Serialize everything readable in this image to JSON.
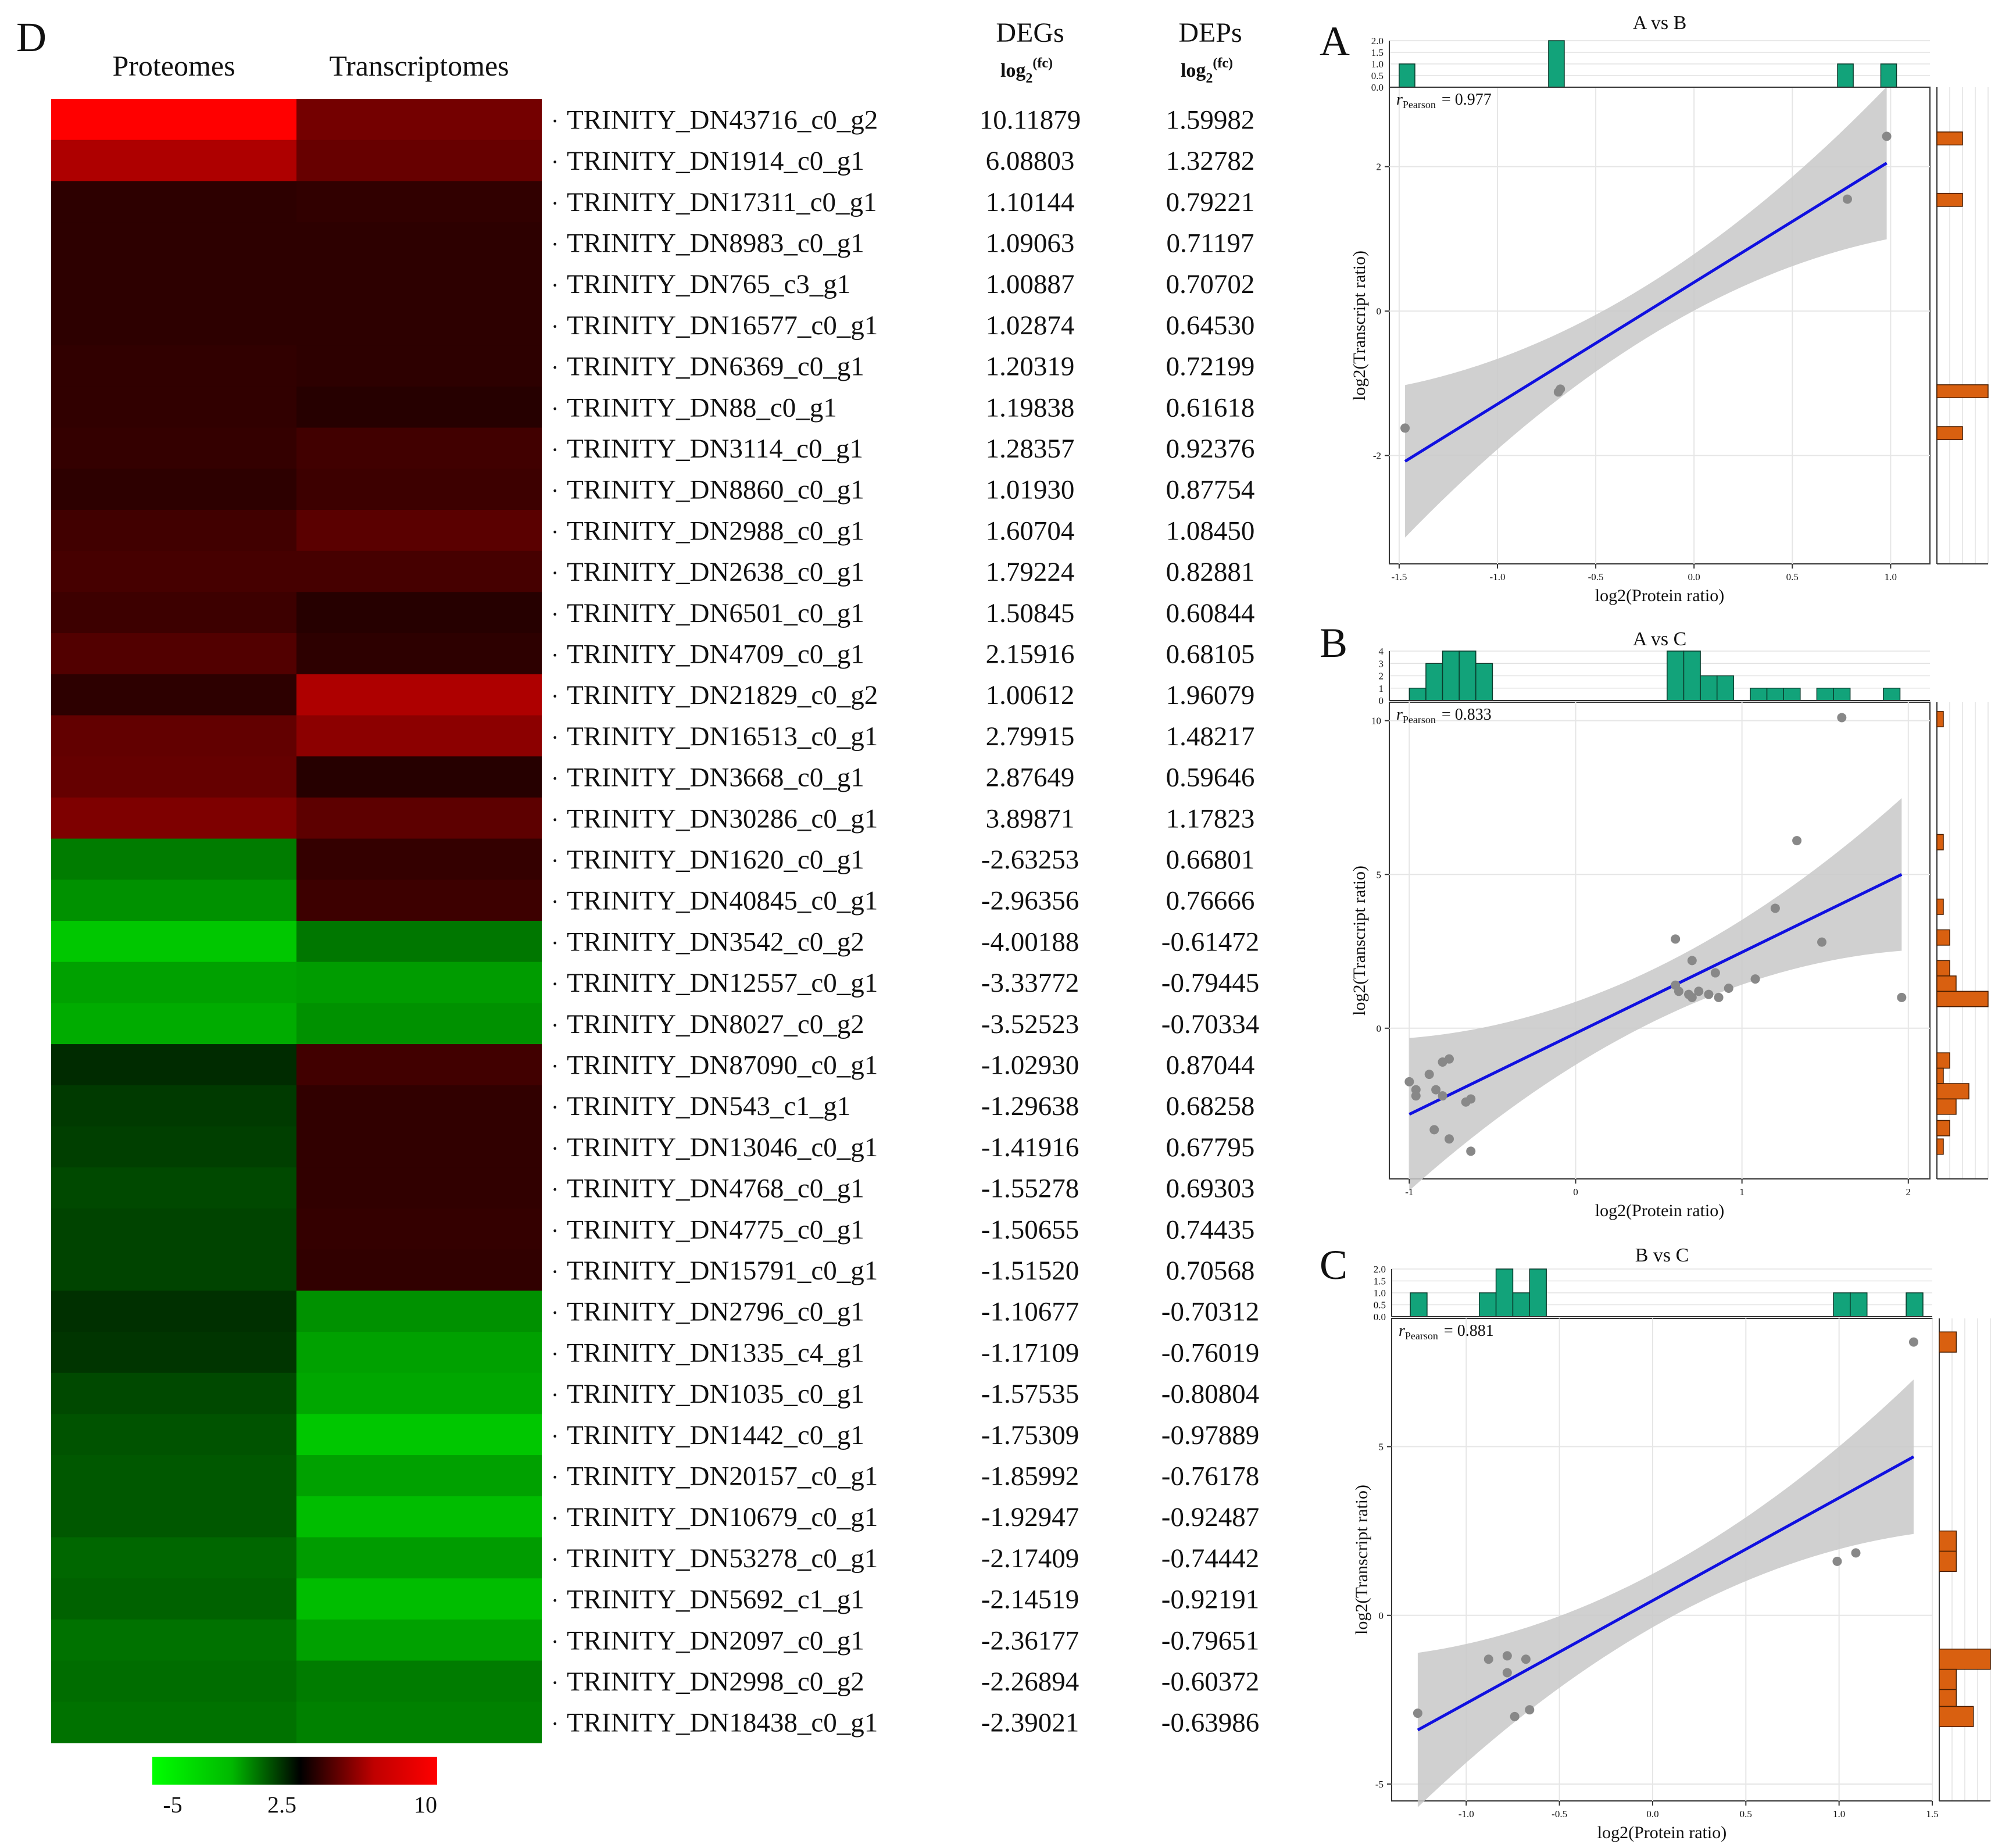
{
  "heatmap": {
    "panel_label": "D",
    "col_headers": [
      "Proteomes",
      "Transcriptomes"
    ],
    "value_headers": {
      "degs": "DEGs",
      "deps": "DEPs",
      "log_base": "log",
      "log_sub": "2",
      "log_sup": "(fc)"
    },
    "rows": [
      {
        "gene": "TRINITY_DN43716_c0_g2",
        "degs": "10.11879",
        "deps": "1.59982"
      },
      {
        "gene": "TRINITY_DN1914_c0_g1",
        "degs": "6.08803",
        "deps": "1.32782"
      },
      {
        "gene": "TRINITY_DN17311_c0_g1",
        "degs": "1.10144",
        "deps": "0.79221"
      },
      {
        "gene": "TRINITY_DN8983_c0_g1",
        "degs": "1.09063",
        "deps": "0.71197"
      },
      {
        "gene": "TRINITY_DN765_c3_g1",
        "degs": "1.00887",
        "deps": "0.70702"
      },
      {
        "gene": "TRINITY_DN16577_c0_g1",
        "degs": "1.02874",
        "deps": "0.64530"
      },
      {
        "gene": "TRINITY_DN6369_c0_g1",
        "degs": "1.20319",
        "deps": "0.72199"
      },
      {
        "gene": "TRINITY_DN88_c0_g1",
        "degs": "1.19838",
        "deps": "0.61618"
      },
      {
        "gene": "TRINITY_DN3114_c0_g1",
        "degs": "1.28357",
        "deps": "0.92376"
      },
      {
        "gene": "TRINITY_DN8860_c0_g1",
        "degs": "1.01930",
        "deps": "0.87754"
      },
      {
        "gene": "TRINITY_DN2988_c0_g1",
        "degs": "1.60704",
        "deps": "1.08450"
      },
      {
        "gene": "TRINITY_DN2638_c0_g1",
        "degs": "1.79224",
        "deps": "0.82881"
      },
      {
        "gene": "TRINITY_DN6501_c0_g1",
        "degs": "1.50845",
        "deps": "0.60844"
      },
      {
        "gene": "TRINITY_DN4709_c0_g1",
        "degs": "2.15916",
        "deps": "0.68105"
      },
      {
        "gene": "TRINITY_DN21829_c0_g2",
        "degs": "1.00612",
        "deps": "1.96079"
      },
      {
        "gene": "TRINITY_DN16513_c0_g1",
        "degs": "2.79915",
        "deps": "1.48217"
      },
      {
        "gene": "TRINITY_DN3668_c0_g1",
        "degs": "2.87649",
        "deps": "0.59646"
      },
      {
        "gene": "TRINITY_DN30286_c0_g1",
        "degs": "3.89871",
        "deps": "1.17823"
      },
      {
        "gene": "TRINITY_DN1620_c0_g1",
        "degs": "-2.63253",
        "deps": "0.66801"
      },
      {
        "gene": "TRINITY_DN40845_c0_g1",
        "degs": "-2.96356",
        "deps": "0.76666"
      },
      {
        "gene": "TRINITY_DN3542_c0_g2",
        "degs": "-4.00188",
        "deps": "-0.61472"
      },
      {
        "gene": "TRINITY_DN12557_c0_g1",
        "degs": "-3.33772",
        "deps": "-0.79445"
      },
      {
        "gene": "TRINITY_DN8027_c0_g2",
        "degs": "-3.52523",
        "deps": "-0.70334"
      },
      {
        "gene": "TRINITY_DN87090_c0_g1",
        "degs": "-1.02930",
        "deps": "0.87044"
      },
      {
        "gene": "TRINITY_DN543_c1_g1",
        "degs": "-1.29638",
        "deps": "0.68258"
      },
      {
        "gene": "TRINITY_DN13046_c0_g1",
        "degs": "-1.41916",
        "deps": "0.67795"
      },
      {
        "gene": "TRINITY_DN4768_c0_g1",
        "degs": "-1.55278",
        "deps": "0.69303"
      },
      {
        "gene": "TRINITY_DN4775_c0_g1",
        "degs": "-1.50655",
        "deps": "0.74435"
      },
      {
        "gene": "TRINITY_DN15791_c0_g1",
        "degs": "-1.51520",
        "deps": "0.70568"
      },
      {
        "gene": "TRINITY_DN2796_c0_g1",
        "degs": "-1.10677",
        "deps": "-0.70312"
      },
      {
        "gene": "TRINITY_DN1335_c4_g1",
        "degs": "-1.17109",
        "deps": "-0.76019"
      },
      {
        "gene": "TRINITY_DN1035_c0_g1",
        "degs": "-1.57535",
        "deps": "-0.80804"
      },
      {
        "gene": "TRINITY_DN1442_c0_g1",
        "degs": "-1.75309",
        "deps": "-0.97889"
      },
      {
        "gene": "TRINITY_DN20157_c0_g1",
        "degs": "-1.85992",
        "deps": "-0.76178"
      },
      {
        "gene": "TRINITY_DN10679_c0_g1",
        "degs": "-1.92947",
        "deps": "-0.92487"
      },
      {
        "gene": "TRINITY_DN53278_c0_g1",
        "degs": "-2.17409",
        "deps": "-0.74442"
      },
      {
        "gene": "TRINITY_DN5692_c1_g1",
        "degs": "-2.14519",
        "deps": "-0.92191"
      },
      {
        "gene": "TRINITY_DN2097_c0_g1",
        "degs": "-2.36177",
        "deps": "-0.79651"
      },
      {
        "gene": "TRINITY_DN2998_c0_g2",
        "degs": "-2.26894",
        "deps": "-0.60372"
      },
      {
        "gene": "TRINITY_DN18438_c0_g1",
        "degs": "-2.39021",
        "deps": "-0.63986"
      }
    ],
    "colorbar": {
      "labels": [
        "-5",
        "2.5",
        "10"
      ],
      "colors": {
        "low": "#00ff00",
        "mid": "#000000",
        "high": "#ff0000"
      }
    }
  },
  "chart_data": [
    {
      "type": "heatmap",
      "columns": [
        "Proteomes",
        "Transcriptomes"
      ],
      "value_range": [
        -5,
        10
      ],
      "colorbar_ticks": [
        "-5",
        "2.5",
        "10"
      ],
      "note_cells": "cell colors estimated from image; values in log2 fold-change scale",
      "cells": [
        [
          10.0,
          3.5
        ],
        [
          6.0,
          3.0
        ],
        [
          1.0,
          1.1
        ],
        [
          1.0,
          1.0
        ],
        [
          1.0,
          1.0
        ],
        [
          1.0,
          1.0
        ],
        [
          1.1,
          1.0
        ],
        [
          1.1,
          0.8
        ],
        [
          1.2,
          1.6
        ],
        [
          1.0,
          1.5
        ],
        [
          1.6,
          2.5
        ],
        [
          1.8,
          1.8
        ],
        [
          1.5,
          0.8
        ],
        [
          2.2,
          1.0
        ],
        [
          1.0,
          6.0
        ],
        [
          2.8,
          4.5
        ],
        [
          2.9,
          0.8
        ],
        [
          3.9,
          2.6
        ],
        [
          -2.6,
          1.2
        ],
        [
          -3.0,
          1.5
        ],
        [
          -4.0,
          -2.5
        ],
        [
          -3.3,
          -3.2
        ],
        [
          -3.5,
          -3.0
        ],
        [
          -1.0,
          1.6
        ],
        [
          -1.3,
          1.1
        ],
        [
          -1.4,
          1.1
        ],
        [
          -1.6,
          1.1
        ],
        [
          -1.5,
          1.2
        ],
        [
          -1.5,
          1.1
        ],
        [
          -1.1,
          -3.0
        ],
        [
          -1.2,
          -3.3
        ],
        [
          -1.6,
          -3.4
        ],
        [
          -1.8,
          -4.0
        ],
        [
          -1.9,
          -3.3
        ],
        [
          -1.9,
          -3.8
        ],
        [
          -2.2,
          -3.2
        ],
        [
          -2.1,
          -3.8
        ],
        [
          -2.4,
          -3.3
        ],
        [
          -2.3,
          -2.6
        ],
        [
          -2.4,
          -2.7
        ]
      ]
    },
    {
      "type": "scatter",
      "panel": "A",
      "title": "A  vs  B",
      "xlabel": "log2(Protein ratio)",
      "ylabel": "log2(Transcript ratio)",
      "r_label": "r",
      "r_sub": "Pearson",
      "r_value": "= 0.977",
      "xlim": [
        -1.55,
        1.2
      ],
      "ylim": [
        -3.5,
        3.1
      ],
      "xticks": [
        -1.5,
        -1.0,
        -0.5,
        0.0,
        0.5,
        1.0
      ],
      "xtick_labels": [
        "-1.5",
        "-1.0",
        "-0.5",
        "0.0",
        "0.5",
        "1.0"
      ],
      "yticks": [
        -2,
        0,
        2
      ],
      "ytick_labels": [
        "-2",
        "0",
        "2"
      ],
      "points": [
        [
          -1.47,
          -1.62
        ],
        [
          -0.69,
          -1.12
        ],
        [
          -0.68,
          -1.08
        ],
        [
          0.78,
          1.55
        ],
        [
          0.98,
          2.42
        ]
      ],
      "fit": {
        "x": [
          -1.47,
          0.98
        ],
        "y": [
          -2.08,
          2.05
        ]
      },
      "top_hist": {
        "yticks": [
          "0.0",
          "0.5",
          "1.0",
          "1.5",
          "2.0"
        ],
        "ymax": 2.0,
        "bins": [
          {
            "x0": -1.5,
            "x1": -1.42,
            "count": 1
          },
          {
            "x0": -0.74,
            "x1": -0.66,
            "count": 2
          },
          {
            "x0": 0.73,
            "x1": 0.81,
            "count": 1
          },
          {
            "x0": 0.95,
            "x1": 1.03,
            "count": 1
          }
        ]
      },
      "right_hist": {
        "xmax": 2.0,
        "bins": [
          {
            "y0": -1.78,
            "y1": -1.6,
            "count": 1
          },
          {
            "y0": -1.2,
            "y1": -1.02,
            "count": 2
          },
          {
            "y0": 1.45,
            "y1": 1.63,
            "count": 1
          },
          {
            "y0": 2.3,
            "y1": 2.48,
            "count": 1
          }
        ]
      }
    },
    {
      "type": "scatter",
      "panel": "B",
      "title": "A  vs  C",
      "xlabel": "log2(Protein ratio)",
      "ylabel": "log2(Transcript ratio)",
      "r_label": "r",
      "r_sub": "Pearson",
      "r_value": "= 0.833",
      "xlim": [
        -1.12,
        2.13
      ],
      "ylim": [
        -4.9,
        10.6
      ],
      "xticks": [
        -1,
        0,
        1,
        2
      ],
      "xtick_labels": [
        "-1",
        "0",
        "1",
        "2"
      ],
      "yticks": [
        0,
        5,
        10
      ],
      "ytick_labels": [
        "0",
        "5",
        "10"
      ],
      "points": [
        [
          -1.0,
          -1.74
        ],
        [
          -0.96,
          -2.0
        ],
        [
          -0.96,
          -2.2
        ],
        [
          -0.88,
          -1.5
        ],
        [
          -0.84,
          -2.0
        ],
        [
          -0.8,
          -1.1
        ],
        [
          -0.76,
          -1.0
        ],
        [
          -0.85,
          -3.3
        ],
        [
          -0.76,
          -3.6
        ],
        [
          -0.66,
          -2.4
        ],
        [
          -0.63,
          -2.3
        ],
        [
          -0.63,
          -4.0
        ],
        [
          -0.8,
          -2.2
        ],
        [
          0.6,
          2.9
        ],
        [
          0.6,
          1.4
        ],
        [
          0.62,
          1.2
        ],
        [
          0.68,
          1.1
        ],
        [
          0.7,
          2.2
        ],
        [
          0.7,
          1.0
        ],
        [
          0.74,
          1.2
        ],
        [
          0.8,
          1.1
        ],
        [
          0.84,
          1.8
        ],
        [
          0.86,
          1.0
        ],
        [
          0.92,
          1.3
        ],
        [
          1.08,
          1.6
        ],
        [
          1.2,
          3.9
        ],
        [
          1.33,
          6.1
        ],
        [
          1.48,
          2.8
        ],
        [
          1.6,
          10.1
        ],
        [
          1.96,
          1.0
        ]
      ],
      "fit": {
        "x": [
          -1.0,
          1.96
        ],
        "y": [
          -2.8,
          5.0
        ]
      },
      "top_hist": {
        "yticks": [
          "0",
          "1",
          "2",
          "3",
          "4"
        ],
        "ymax": 4,
        "bins": [
          {
            "x0": -1.0,
            "x1": -0.9,
            "count": 1
          },
          {
            "x0": -0.9,
            "x1": -0.8,
            "count": 3
          },
          {
            "x0": -0.8,
            "x1": -0.7,
            "count": 4
          },
          {
            "x0": -0.7,
            "x1": -0.6,
            "count": 4
          },
          {
            "x0": -0.6,
            "x1": -0.5,
            "count": 3
          },
          {
            "x0": 0.55,
            "x1": 0.65,
            "count": 4
          },
          {
            "x0": 0.65,
            "x1": 0.75,
            "count": 4
          },
          {
            "x0": 0.75,
            "x1": 0.85,
            "count": 2
          },
          {
            "x0": 0.85,
            "x1": 0.95,
            "count": 2
          },
          {
            "x0": 1.05,
            "x1": 1.15,
            "count": 1
          },
          {
            "x0": 1.15,
            "x1": 1.25,
            "count": 1
          },
          {
            "x0": 1.25,
            "x1": 1.35,
            "count": 1
          },
          {
            "x0": 1.45,
            "x1": 1.55,
            "count": 1
          },
          {
            "x0": 1.55,
            "x1": 1.65,
            "count": 1
          },
          {
            "x0": 1.85,
            "x1": 1.95,
            "count": 1
          }
        ]
      },
      "right_hist": {
        "xmax": 8,
        "bins": [
          {
            "y0": 9.8,
            "y1": 10.3,
            "count": 1
          },
          {
            "y0": 5.8,
            "y1": 6.3,
            "count": 1
          },
          {
            "y0": 3.7,
            "y1": 4.2,
            "count": 1
          },
          {
            "y0": 2.7,
            "y1": 3.2,
            "count": 2
          },
          {
            "y0": 1.7,
            "y1": 2.2,
            "count": 2
          },
          {
            "y0": 1.2,
            "y1": 1.7,
            "count": 3
          },
          {
            "y0": 0.7,
            "y1": 1.2,
            "count": 8
          },
          {
            "y0": -1.3,
            "y1": -0.8,
            "count": 2
          },
          {
            "y0": -1.8,
            "y1": -1.3,
            "count": 1
          },
          {
            "y0": -2.3,
            "y1": -1.8,
            "count": 5
          },
          {
            "y0": -2.8,
            "y1": -2.3,
            "count": 3
          },
          {
            "y0": -3.5,
            "y1": -3.0,
            "count": 2
          },
          {
            "y0": -4.1,
            "y1": -3.6,
            "count": 1
          }
        ]
      }
    },
    {
      "type": "scatter",
      "panel": "C",
      "title": "B  vs  C",
      "xlabel": "log2(Protein ratio)",
      "ylabel": "log2(Transcript ratio)",
      "r_label": "r",
      "r_sub": "Pearson",
      "r_value": "= 0.881",
      "xlim": [
        -1.4,
        1.5
      ],
      "ylim": [
        -5.5,
        8.8
      ],
      "xticks": [
        -1.0,
        -0.5,
        0.0,
        0.5,
        1.0,
        1.5
      ],
      "xtick_labels": [
        "-1.0",
        "-0.5",
        "0.0",
        "0.5",
        "1.0",
        "1.5"
      ],
      "yticks": [
        -5,
        0,
        5
      ],
      "ytick_labels": [
        "-5",
        "0",
        "5"
      ],
      "points": [
        [
          -1.26,
          -2.9
        ],
        [
          -0.88,
          -1.3
        ],
        [
          -0.78,
          -1.2
        ],
        [
          -0.78,
          -1.7
        ],
        [
          -0.74,
          -3.0
        ],
        [
          -0.68,
          -1.3
        ],
        [
          -0.66,
          -2.8
        ],
        [
          0.99,
          1.6
        ],
        [
          1.09,
          1.85
        ],
        [
          1.4,
          8.1
        ]
      ],
      "fit": {
        "x": [
          -1.26,
          1.4
        ],
        "y": [
          -3.4,
          4.7
        ]
      },
      "top_hist": {
        "yticks": [
          "0.0",
          "0.5",
          "1.0",
          "1.5",
          "2.0"
        ],
        "ymax": 2.0,
        "bins": [
          {
            "x0": -1.3,
            "x1": -1.21,
            "count": 1
          },
          {
            "x0": -0.93,
            "x1": -0.84,
            "count": 1
          },
          {
            "x0": -0.84,
            "x1": -0.75,
            "count": 2
          },
          {
            "x0": -0.75,
            "x1": -0.66,
            "count": 1
          },
          {
            "x0": -0.66,
            "x1": -0.57,
            "count": 2
          },
          {
            "x0": 0.97,
            "x1": 1.06,
            "count": 1
          },
          {
            "x0": 1.06,
            "x1": 1.15,
            "count": 1
          },
          {
            "x0": 1.36,
            "x1": 1.45,
            "count": 1
          }
        ]
      },
      "right_hist": {
        "xmax": 3.0,
        "bins": [
          {
            "y0": 7.8,
            "y1": 8.4,
            "count": 1
          },
          {
            "y0": 1.9,
            "y1": 2.5,
            "count": 1
          },
          {
            "y0": 1.3,
            "y1": 1.9,
            "count": 1
          },
          {
            "y0": -1.6,
            "y1": -1.0,
            "count": 3
          },
          {
            "y0": -2.2,
            "y1": -1.6,
            "count": 1
          },
          {
            "y0": -2.7,
            "y1": -2.2,
            "count": 1
          },
          {
            "y0": -3.3,
            "y1": -2.7,
            "count": 2
          }
        ]
      }
    }
  ],
  "colors": {
    "top_hist": "#12a37a",
    "right_hist": "#d96010",
    "fit_line": "#1010e0",
    "ci_band": "#c8c8c8",
    "point": "#888888"
  }
}
